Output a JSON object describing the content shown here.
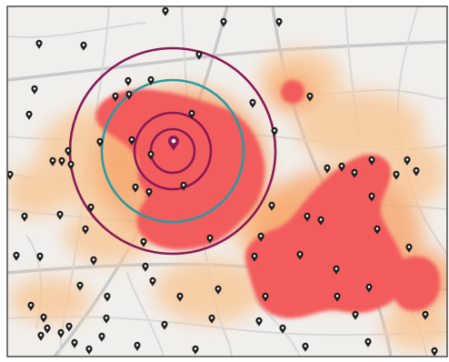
{
  "map": {
    "colors": {
      "land": "#f1efec",
      "streets": "#d8d8d8",
      "major_streets": "#c9c9c9",
      "heat_low": "#f8c99a",
      "heat_mid": "#f7a56b",
      "heat_high": "#f35b5b",
      "ring_outer": "#8a1a55",
      "ring_middle": "#2b9aa3",
      "ring_inner": "#8a1a55",
      "marker": "#1f1f1f",
      "marker_center": "#8a1a55",
      "border": "#4a4a4a"
    },
    "legend": null
  }
}
